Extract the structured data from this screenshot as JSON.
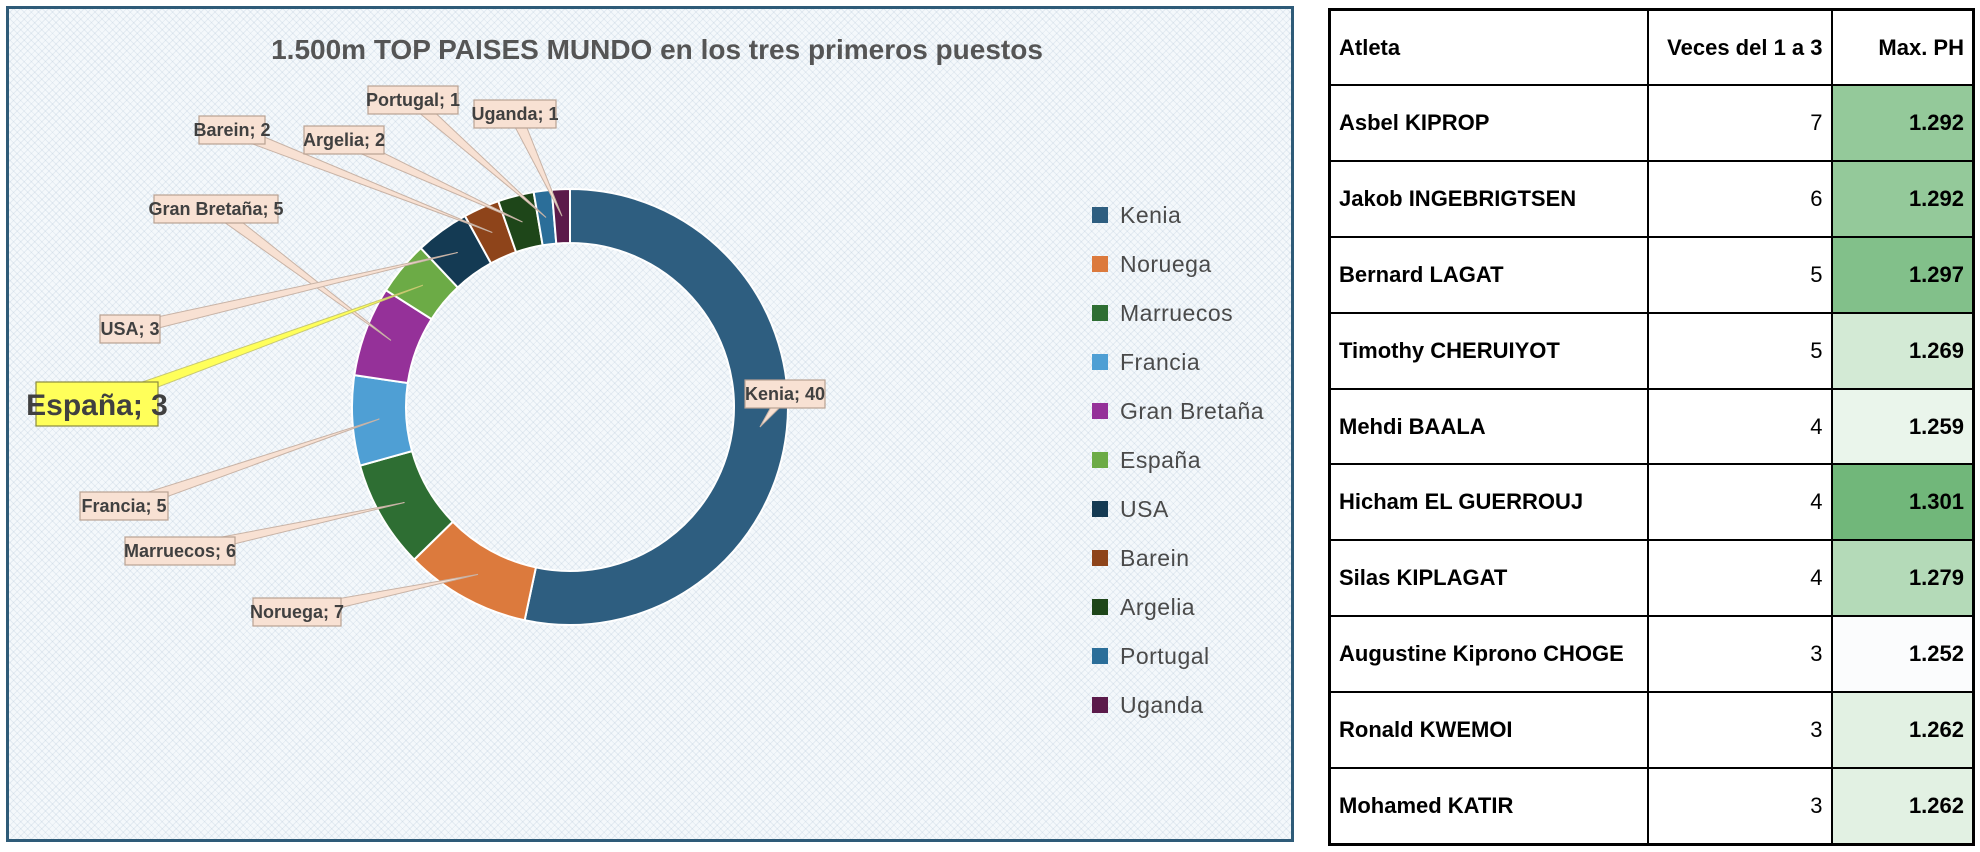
{
  "chart_data": {
    "type": "pie",
    "title": "1.500m TOP PAISES MUNDO en los tres primeros puestos",
    "legend_position": "right",
    "highlight": "España",
    "slices": [
      {
        "name": "Kenia",
        "value": 40,
        "label": "Kenia; 40",
        "color": "#2e5e80"
      },
      {
        "name": "Noruega",
        "value": 7,
        "label": "Noruega; 7",
        "color": "#dc7a3d"
      },
      {
        "name": "Marruecos",
        "value": 6,
        "label": "Marruecos; 6",
        "color": "#2e6e33"
      },
      {
        "name": "Francia",
        "value": 5,
        "label": "Francia; 5",
        "color": "#4f9fd4"
      },
      {
        "name": "Gran Bretaña",
        "value": 5,
        "label": "Gran Bretaña; 5",
        "color": "#953199"
      },
      {
        "name": "España",
        "value": 3,
        "label": "España; 3",
        "color": "#6cab46"
      },
      {
        "name": "USA",
        "value": 3,
        "label": "USA; 3",
        "color": "#143a53"
      },
      {
        "name": "Barein",
        "value": 2,
        "label": "Barein; 2",
        "color": "#8e441a"
      },
      {
        "name": "Argelia",
        "value": 2,
        "label": "Argelia; 2",
        "color": "#1e4619"
      },
      {
        "name": "Portugal",
        "value": 1,
        "label": "Portugal; 1",
        "color": "#2b6e99"
      },
      {
        "name": "Uganda",
        "value": 1,
        "label": "Uganda; 1",
        "color": "#5b1a4a"
      }
    ]
  },
  "table": {
    "headers": {
      "athlete": "Atleta",
      "times": "Veces del 1 a 3",
      "max_ph": "Max. PH"
    },
    "rows": [
      {
        "athlete": "Asbel KIPROP",
        "times": "7",
        "max_ph": "1.292",
        "shade": "#94c99a"
      },
      {
        "athlete": "Jakob INGEBRIGTSEN",
        "times": "6",
        "max_ph": "1.292",
        "shade": "#94c99a"
      },
      {
        "athlete": "Bernard LAGAT",
        "times": "5",
        "max_ph": "1.297",
        "shade": "#82c08a"
      },
      {
        "athlete": "Timothy CHERUIYOT",
        "times": "5",
        "max_ph": "1.269",
        "shade": "#d3ead5"
      },
      {
        "athlete": "Mehdi BAALA",
        "times": "4",
        "max_ph": "1.259",
        "shade": "#eaf5eb"
      },
      {
        "athlete": "Hicham EL GUERROUJ",
        "times": "4",
        "max_ph": "1.301",
        "shade": "#71b77a"
      },
      {
        "athlete": "Silas KIPLAGAT",
        "times": "4",
        "max_ph": "1.279",
        "shade": "#b4dab8"
      },
      {
        "athlete": "Augustine Kiprono CHOGE",
        "times": "3",
        "max_ph": "1.252",
        "shade": "#fbfcfd"
      },
      {
        "athlete": "Ronald KWEMOI",
        "times": "3",
        "max_ph": "1.262",
        "shade": "#e2f1e3"
      },
      {
        "athlete": "Mohamed KATIR",
        "times": "3",
        "max_ph": "1.262",
        "shade": "#e2f1e3"
      }
    ]
  }
}
